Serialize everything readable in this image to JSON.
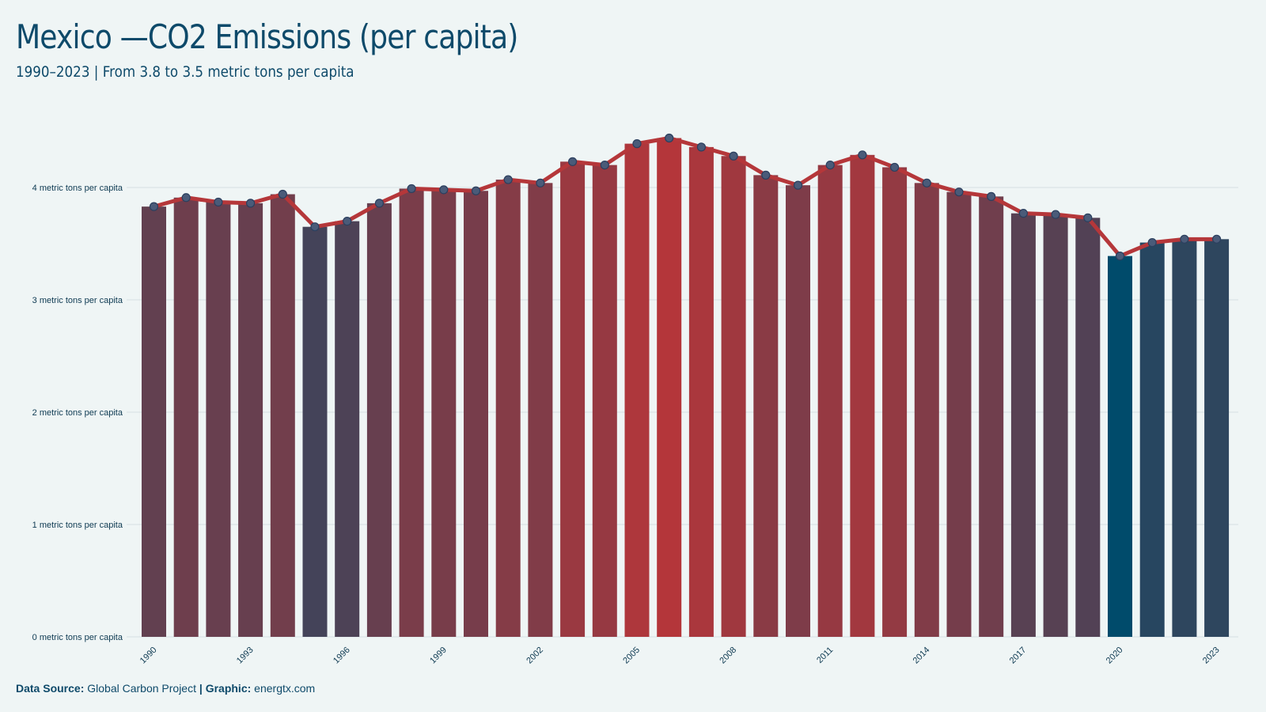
{
  "title": "Mexico —CO2 Emissions (per capita)",
  "subtitle": "1990–2023 | From 3.8 to 3.5 metric tons per capita",
  "footer": {
    "source_label": "Data Source:",
    "source_value": "Global Carbon Project",
    "separator": "|",
    "graphic_label": "Graphic:",
    "graphic_value": "energtx.com"
  },
  "colors": {
    "background": "#eff5f5",
    "line": "#b5373a",
    "low": "#004b6b",
    "high": "#b4363a",
    "gridline": "#d5dfe2",
    "point_fill": "#4a5b79",
    "point_stroke": "#2b3f5e"
  },
  "chart_data": {
    "type": "bar",
    "overlay": "line",
    "x": [
      1990,
      1991,
      1992,
      1993,
      1994,
      1995,
      1996,
      1997,
      1998,
      1999,
      2000,
      2001,
      2002,
      2003,
      2004,
      2005,
      2006,
      2007,
      2008,
      2009,
      2010,
      2011,
      2012,
      2013,
      2014,
      2015,
      2016,
      2017,
      2018,
      2019,
      2020,
      2021,
      2022,
      2023
    ],
    "values": [
      3.83,
      3.91,
      3.87,
      3.86,
      3.94,
      3.65,
      3.7,
      3.86,
      3.99,
      3.98,
      3.97,
      4.07,
      4.04,
      4.23,
      4.2,
      4.39,
      4.44,
      4.36,
      4.28,
      4.11,
      4.02,
      4.2,
      4.29,
      4.18,
      4.04,
      3.96,
      3.92,
      3.77,
      3.76,
      3.73,
      3.39,
      3.51,
      3.54,
      3.54
    ],
    "unit": "metric tons per capita",
    "ylim": [
      0,
      4.5
    ],
    "yticks": [
      0,
      1,
      2,
      3,
      4
    ],
    "ytick_labels": [
      "0 metric tons per capita",
      "1 metric tons per capita",
      "2 metric tons per capita",
      "3 metric tons per capita",
      "4 metric tons per capita"
    ],
    "xtick_labels": [
      "1990",
      "1993",
      "1996",
      "1999",
      "2002",
      "2005",
      "2008",
      "2011",
      "2014",
      "2017",
      "2020",
      "2023"
    ],
    "grid": true,
    "legend": "none"
  }
}
